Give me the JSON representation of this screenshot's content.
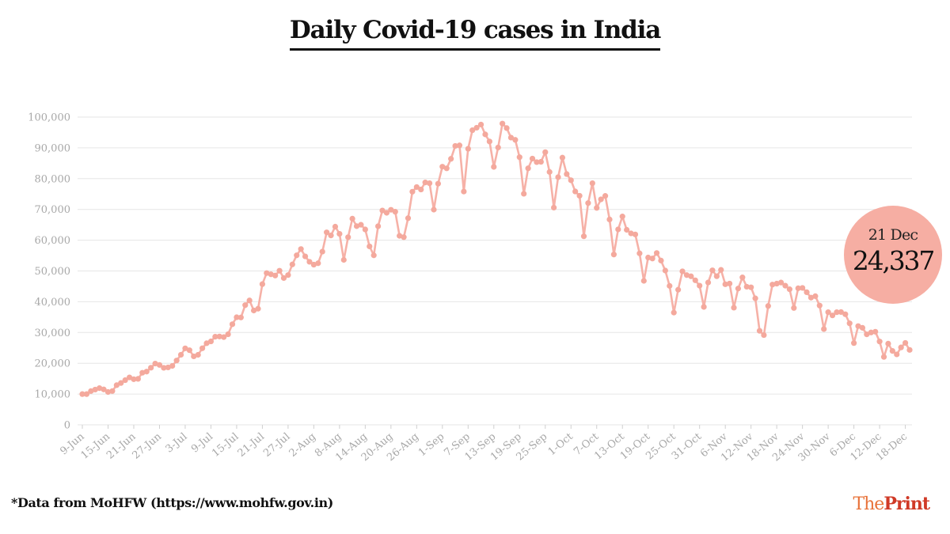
{
  "title": "Daily Covid-19 cases in India",
  "footnote": "*Data from MoHFW (https://www.mohfw.gov.in)",
  "brand": {
    "the": "The",
    "print": "Print"
  },
  "colors": {
    "line": "#f6b1a7",
    "marker": "#f4a99d",
    "bubble": "#f6aea3",
    "grid": "#e6e6e6",
    "tick_text": "#a8a8a8"
  },
  "callout": {
    "date": "21 Dec",
    "value": "24,337"
  },
  "chart_data": {
    "type": "line",
    "title": "Daily Covid-19 cases in India",
    "xlabel": "",
    "ylabel": "",
    "ylim": [
      0,
      100000
    ],
    "yticks": [
      0,
      10000,
      20000,
      30000,
      40000,
      50000,
      60000,
      70000,
      80000,
      90000,
      100000
    ],
    "ytick_labels": [
      "0",
      "10,000",
      "20,000",
      "30,000",
      "40,000",
      "50,000",
      "60,000",
      "70,000",
      "80,000",
      "90,000",
      "100,000"
    ],
    "xtick_labels": [
      "9-Jun",
      "15-Jun",
      "21-Jun",
      "27-Jun",
      "3-Jul",
      "9-Jul",
      "15-Jul",
      "21-Jul",
      "27-Jul",
      "2-Aug",
      "8-Aug",
      "14-Aug",
      "20-Aug",
      "26-Aug",
      "1-Sep",
      "7-Sep",
      "13-Sep",
      "19-Sep",
      "25-Sep",
      "1-Oct",
      "7-Oct",
      "13-Oct",
      "19-Oct",
      "25-Oct",
      "31-Oct",
      "6-Nov",
      "12-Nov",
      "18-Nov",
      "24-Nov",
      "30-Nov",
      "6-Dec",
      "12-Dec",
      "18-Dec"
    ],
    "x_start": "9-Jun",
    "x_end": "21-Dec",
    "series": [
      {
        "name": "Daily cases",
        "values": [
          9987,
          9985,
          10956,
          11458,
          11929,
          11502,
          10667,
          10974,
          12881,
          13586,
          14516,
          15413,
          14821,
          14933,
          16922,
          17296,
          18552,
          19906,
          19459,
          18522,
          18653,
          19148,
          20903,
          22771,
          24850,
          24248,
          22252,
          22752,
          24879,
          26506,
          27114,
          28637,
          28701,
          28498,
          29429,
          32695,
          34956,
          34884,
          38902,
          40425,
          37148,
          37724,
          45720,
          49310,
          48916,
          48513,
          50072,
          47703,
          48661,
          52123,
          55079,
          57118,
          54735,
          52972,
          52050,
          52509,
          56282,
          62538,
          61537,
          64399,
          62064,
          53601,
          60963,
          66999,
          64553,
          65002,
          63490,
          57981,
          55079,
          64531,
          69652,
          68898,
          69878,
          69239,
          61408,
          60975,
          67151,
          75760,
          77266,
          76472,
          78761,
          78512,
          69921,
          78357,
          83883,
          83341,
          86432,
          90632,
          90802,
          75809,
          89706,
          95735,
          96551,
          97570,
          94372,
          92071,
          83809,
          90123,
          97894,
          96424,
          93337,
          92605,
          86961,
          75083,
          83347,
          86508,
          85362,
          85468,
          88600,
          82170,
          70589,
          80472,
          86821,
          81484,
          79476,
          75829,
          74442,
          61267,
          72049,
          78524,
          70496,
          73272,
          74383,
          66732,
          55342,
          63509,
          67708,
          63371,
          62212,
          61871,
          55722,
          46790,
          54366,
          54044,
          55839,
          53370,
          50129,
          45149,
          36470,
          43893,
          49881,
          48648,
          48268,
          46963,
          45230,
          38310,
          46254,
          50210,
          48285,
          50357,
          45674,
          45903,
          38073,
          44281,
          47905,
          44879,
          44684,
          41100,
          30548,
          29163,
          38617,
          45576,
          45882,
          46232,
          45209,
          44059,
          37975,
          44376,
          44489,
          43082,
          41322,
          41810,
          38772,
          31118,
          36604,
          35551,
          36595,
          36652,
          35942,
          32981,
          26567,
          32080,
          31521,
          29398,
          30006,
          30254,
          27071,
          22065,
          26382,
          24010,
          22890,
          25152,
          26624,
          24337
        ]
      }
    ]
  }
}
